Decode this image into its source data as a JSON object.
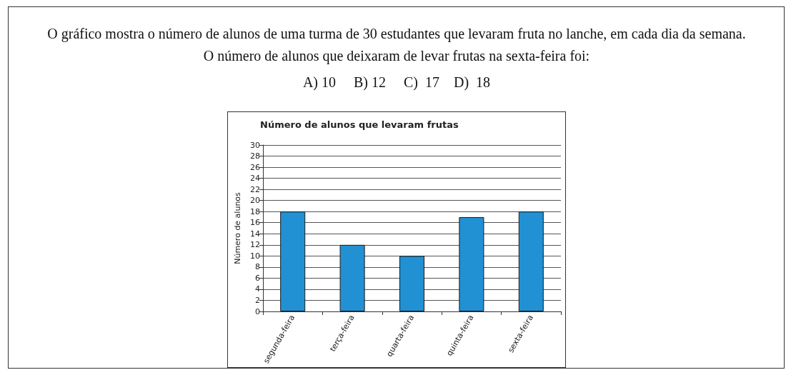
{
  "chart_data": {
    "type": "bar",
    "title": "Número de alunos que levaram frutas",
    "ylabel": "Número de alunos",
    "annotations": [
      "O gráfico mostra o número de alunos de uma turma de 30 estudantes que levaram fruta no lanche, em cada dia da semana. O número de alunos que deixaram de levar frutas na sexta-feira foi:",
      "A) 10     B) 12     C)  17    D)  18"
    ],
    "categories": [
      "segunda-feira",
      "terça-feira",
      "quarta-feira",
      "quinta-feira",
      "sexta-feira"
    ],
    "values": [
      18,
      12,
      10,
      17,
      18
    ],
    "color": "#2191d3",
    "ylim": [
      0,
      30
    ],
    "yticks": [
      0,
      2,
      4,
      6,
      8,
      10,
      12,
      14,
      16,
      18,
      20,
      22,
      24,
      26,
      28,
      30
    ],
    "grid": "y"
  }
}
